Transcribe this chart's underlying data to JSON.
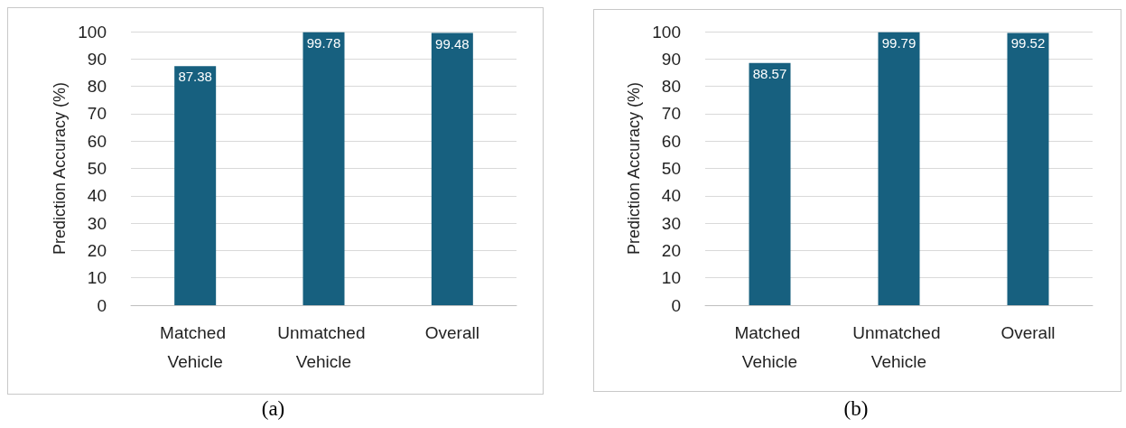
{
  "chart_data": [
    {
      "type": "bar",
      "title": "(a)",
      "ylabel": "Prediction Accuracy (%)",
      "categories": [
        "Matched Vehicle",
        "Unmatched Vehicle",
        "Overall"
      ],
      "values": [
        87.38,
        99.78,
        99.48
      ],
      "color": "#17607f",
      "ylim": [
        0,
        100
      ],
      "yticks": [
        0,
        10,
        20,
        30,
        40,
        50,
        60,
        70,
        80,
        90,
        100
      ],
      "grid": "y",
      "data_labels": true
    },
    {
      "type": "bar",
      "title": "(b)",
      "ylabel": "Prediction Accuracy (%)",
      "categories": [
        "Matched Vehicle",
        "Unmatched Vehicle",
        "Overall"
      ],
      "values": [
        88.57,
        99.79,
        99.52
      ],
      "color": "#17607f",
      "ylim": [
        0,
        100
      ],
      "yticks": [
        0,
        10,
        20,
        30,
        40,
        50,
        60,
        70,
        80,
        90,
        100
      ],
      "grid": "y",
      "data_labels": true
    }
  ]
}
